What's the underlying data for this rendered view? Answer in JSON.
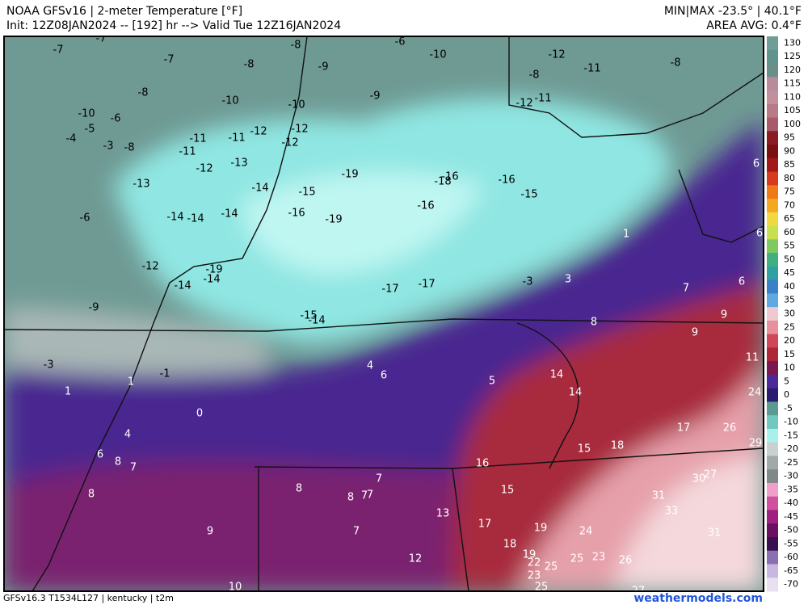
{
  "header": {
    "title": "NOAA GFSv16 | 2-meter Temperature [°F]",
    "init": "Init: 12Z08JAN2024 -- [192] hr --> Valid Tue 12Z16JAN2024",
    "minmax": "MIN|MAX -23.5° | 40.1°F",
    "average": "AREA AVG: 0.4°F"
  },
  "map": {
    "values": [
      -7,
      -7,
      -7,
      -8,
      -6,
      -10,
      -12,
      -11,
      -8,
      -8,
      -9,
      -8,
      -8,
      -10,
      -9,
      -10,
      -12,
      -11,
      -10,
      -6,
      -5,
      -11,
      -11,
      -12,
      -12,
      -12,
      -4,
      -3,
      -8,
      -11,
      -12,
      -13,
      -19,
      -16,
      -18,
      -16,
      -15,
      -13,
      -14,
      -15,
      -16,
      -16,
      -6,
      -14,
      -14,
      -14,
      -19,
      1,
      6,
      6,
      -12,
      -19,
      -14,
      -14,
      -17,
      -17,
      -3,
      3,
      7,
      6,
      -9,
      -15,
      -14,
      9,
      8,
      9,
      11,
      -3,
      4,
      6,
      -1,
      1,
      14,
      5,
      1,
      24,
      14,
      0,
      17,
      26,
      4,
      29,
      15,
      18,
      6,
      8,
      7,
      16,
      27,
      30,
      7,
      8,
      15,
      8,
      31,
      8,
      7,
      7,
      33,
      13,
      17,
      19,
      9,
      7,
      24,
      31,
      18,
      19,
      22,
      25,
      25,
      23,
      26,
      12,
      23,
      25,
      10,
      27
    ]
  },
  "colorbar": {
    "ticks": [
      130,
      125,
      120,
      115,
      110,
      105,
      100,
      95,
      90,
      85,
      80,
      75,
      70,
      65,
      60,
      55,
      50,
      45,
      40,
      35,
      30,
      25,
      20,
      15,
      10,
      5,
      0,
      -5,
      -10,
      -15,
      -20,
      -25,
      -30,
      -35,
      -40,
      -45,
      -50,
      -55,
      -60,
      -65,
      -70
    ],
    "colors": [
      "#6f9e96",
      "#5f948c",
      "#6a8f8a",
      "#b88a9a",
      "#c2909c",
      "#b87a88",
      "#a85a6a",
      "#8a1c24",
      "#7a1010",
      "#a01818",
      "#d83a20",
      "#f07a1a",
      "#f4a820",
      "#f0d840",
      "#c8e050",
      "#80c860",
      "#40b080",
      "#30a0a0",
      "#3a80c8",
      "#60a8e0",
      "#f0c8d0",
      "#e8909c",
      "#d04858",
      "#b02838",
      "#7a1850",
      "#4a2a98",
      "#2a1a70",
      "#5a9a92",
      "#70c8c0",
      "#a8f0ec",
      "#c8d0d0",
      "#a0a8a8",
      "#808888",
      "#f0a0c8",
      "#d050a0",
      "#a02080",
      "#6a1060",
      "#3a1050",
      "#8a70b0",
      "#c8b8e0",
      "#e8e0f0"
    ]
  },
  "footer": {
    "model": "GFSv16.3 T1534L127 | kentucky | t2m",
    "site": "weathermodels.com"
  }
}
